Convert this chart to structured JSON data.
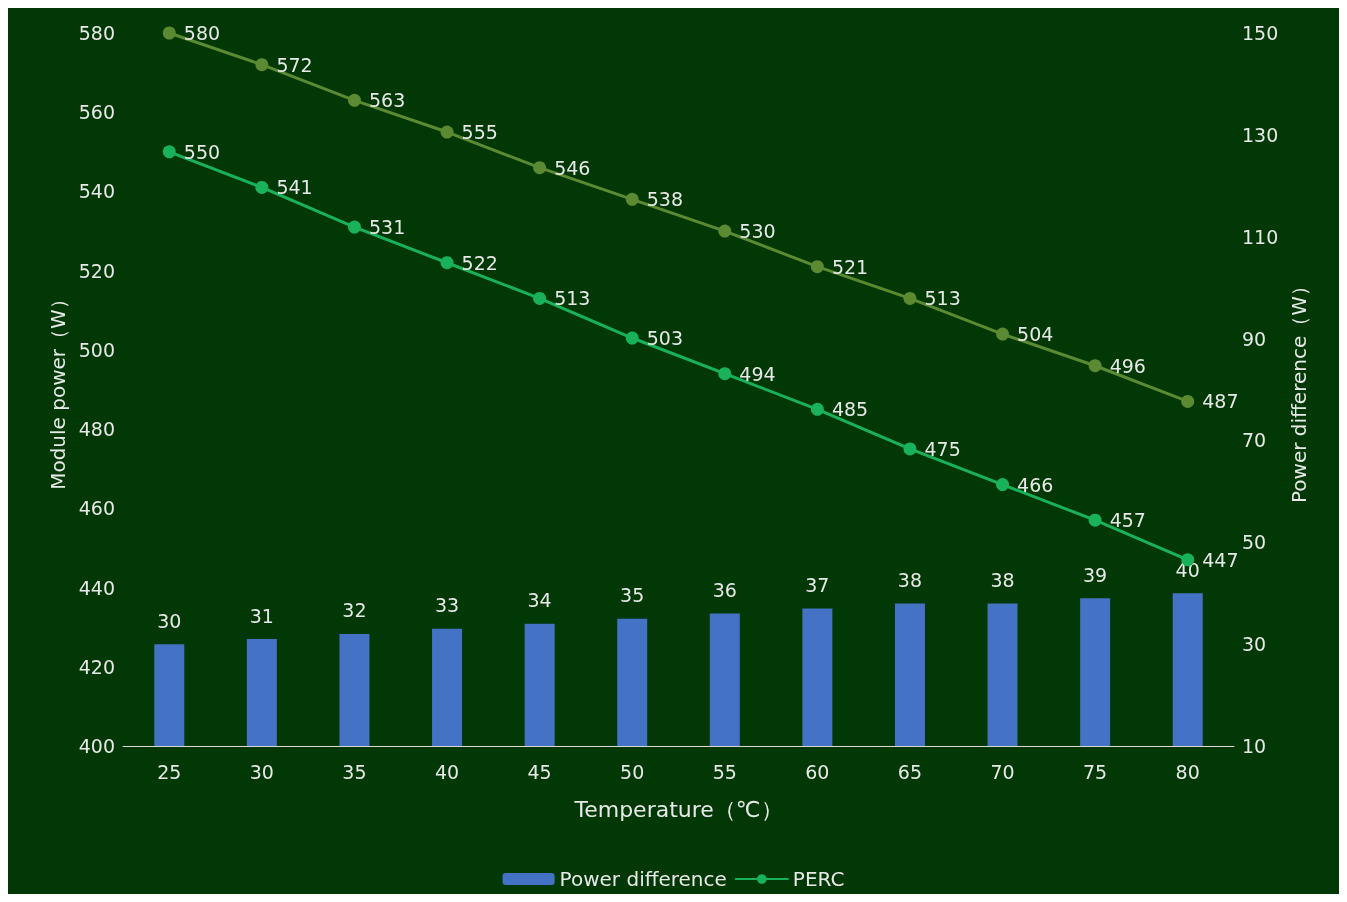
{
  "chart_data": {
    "type": "line",
    "xlabel": "Temperature（℃）",
    "ylabel": "Module power（W）",
    "y2label": "Power difference（W）",
    "categories": [
      "25",
      "30",
      "35",
      "40",
      "45",
      "50",
      "55",
      "60",
      "65",
      "70",
      "75",
      "80"
    ],
    "series": [
      {
        "name": "Power difference",
        "type": "bar",
        "axis": "y2",
        "color": "#4472c4",
        "values": [
          30,
          31,
          32,
          33,
          34,
          35,
          36,
          37,
          38,
          38,
          39,
          40
        ]
      },
      {
        "color": "#5b8a32",
        "values": [
          580,
          572,
          563,
          555,
          546,
          538,
          530,
          521,
          513,
          504,
          496,
          487
        ]
      },
      {
        "name": "PERC",
        "color": "#19b25a",
        "values": [
          550,
          541,
          531,
          522,
          513,
          503,
          494,
          485,
          475,
          466,
          457,
          447
        ]
      }
    ],
    "ylim": [
      400,
      580
    ],
    "yticks": [
      400,
      420,
      440,
      460,
      480,
      500,
      520,
      540,
      560,
      580
    ],
    "y2lim": [
      10,
      150
    ],
    "y2ticks": [
      10,
      30,
      50,
      70,
      90,
      110,
      130,
      150
    ],
    "data_labels": true,
    "marker": "circle",
    "line_style": "solid",
    "grid": false,
    "legend": "bottom"
  }
}
